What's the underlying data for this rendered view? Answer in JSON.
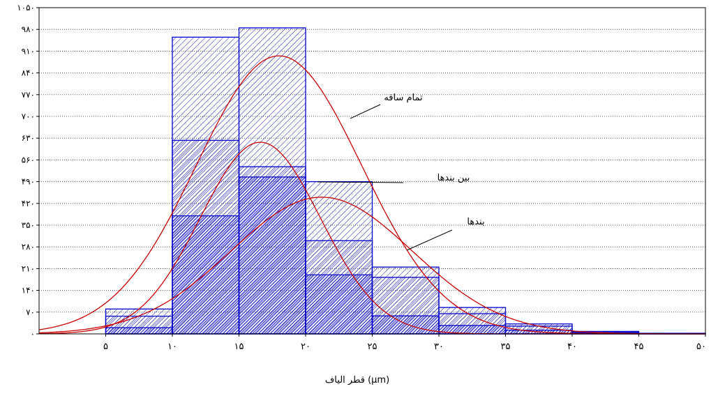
{
  "chart_data": {
    "type": "bar",
    "xlabel": "قطر الیاف (µm)",
    "x_ticks": [
      "۵",
      "۱۰",
      "۱۵",
      "۲۰",
      "۲۵",
      "۳۰",
      "۳۵",
      "۴۰",
      "۴۵",
      "۵۰"
    ],
    "y_ticks": [
      "۰",
      "۷۰",
      "۱۴۰",
      "۲۱۰",
      "۲۸۰",
      "۳۵۰",
      "۴۲۰",
      "۴۹۰",
      "۵۶۰",
      "۶۳۰",
      "۷۰۰",
      "۷۷۰",
      "۸۴۰",
      "۹۱۰",
      "۹۸۰",
      "۱۰۵۰"
    ],
    "ylim": [
      0,
      1050
    ],
    "xlim": [
      0,
      50
    ],
    "grid": "horizontal-dotted",
    "bin_edges": [
      5,
      10,
      15,
      20,
      25,
      30,
      35,
      40,
      45,
      50
    ],
    "series": [
      {
        "name": "تمام ساقه",
        "values": [
          80,
          955,
          985,
          490,
          215,
          85,
          32,
          8,
          2
        ]
      },
      {
        "name": "بین بندها",
        "values": [
          57,
          623,
          538,
          300,
          182,
          65,
          25,
          5,
          1
        ]
      },
      {
        "name": "بندها",
        "values": [
          20,
          380,
          505,
          190,
          58,
          27,
          12,
          3,
          1
        ]
      }
    ],
    "curves": [
      {
        "name": "تمام ساقه",
        "mean": 18,
        "sd": 6.2,
        "peak": 895
      },
      {
        "name": "بین بندها",
        "mean": 16.6,
        "sd": 4.5,
        "peak": 617
      },
      {
        "name": "بندها",
        "mean": 21.2,
        "sd": 6.8,
        "peak": 440
      }
    ],
    "annotations": [
      {
        "text": "تمام ساقه",
        "series": 0
      },
      {
        "text": "بین بندها",
        "series": 1
      },
      {
        "text": "بندها",
        "series": 2
      }
    ],
    "colors": {
      "bar_edge": "#0000cc",
      "bar_hatch": "#1414b4",
      "curve": "#cc0000",
      "grid": "#555555"
    }
  }
}
